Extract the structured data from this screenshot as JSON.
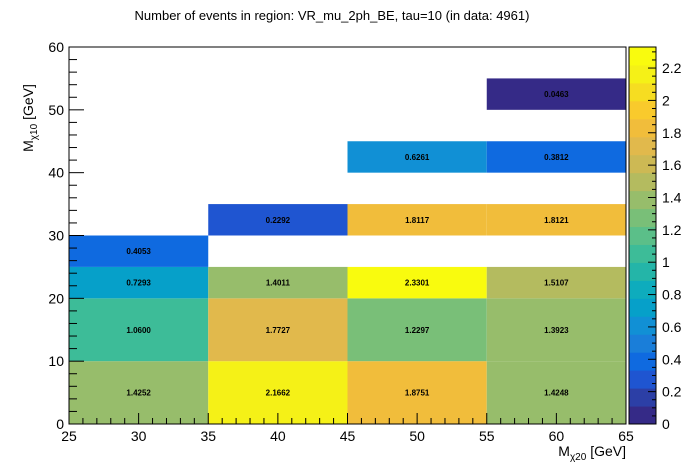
{
  "chart_data": {
    "type": "heatmap",
    "title": "Number of events in region: VR_mu_2ph_BE, tau=10 (in data: 4961)",
    "xlabel": {
      "main": "M",
      "sub": "χ20",
      "unit": " [GeV]"
    },
    "ylabel": {
      "main": "M",
      "sub": "χ10",
      "unit": " [GeV]"
    },
    "xlim": [
      25,
      65
    ],
    "ylim": [
      0,
      60
    ],
    "x_ticks": [
      25,
      30,
      35,
      40,
      45,
      50,
      55,
      60,
      65
    ],
    "y_ticks": [
      0,
      10,
      20,
      30,
      40,
      50,
      60
    ],
    "zlim": [
      0,
      2.3301
    ],
    "z_ticks": [
      0,
      0.2,
      0.4,
      0.6,
      0.8,
      1,
      1.2,
      1.4,
      1.6,
      1.8,
      2,
      2.2
    ],
    "cells": [
      {
        "x0": 25,
        "x1": 35,
        "y0": 0,
        "y1": 10,
        "value": 1.4252,
        "label": "1.4252"
      },
      {
        "x0": 35,
        "x1": 45,
        "y0": 0,
        "y1": 10,
        "value": 2.1662,
        "label": "2.1662"
      },
      {
        "x0": 45,
        "x1": 55,
        "y0": 0,
        "y1": 10,
        "value": 1.8751,
        "label": "1.8751"
      },
      {
        "x0": 55,
        "x1": 65,
        "y0": 0,
        "y1": 10,
        "value": 1.4248,
        "label": "1.4248"
      },
      {
        "x0": 25,
        "x1": 35,
        "y0": 10,
        "y1": 20,
        "value": 1.06,
        "label": "1.0600"
      },
      {
        "x0": 35,
        "x1": 45,
        "y0": 10,
        "y1": 20,
        "value": 1.7727,
        "label": "1.7727"
      },
      {
        "x0": 45,
        "x1": 55,
        "y0": 10,
        "y1": 20,
        "value": 1.2297,
        "label": "1.2297"
      },
      {
        "x0": 55,
        "x1": 65,
        "y0": 10,
        "y1": 20,
        "value": 1.3923,
        "label": "1.3923"
      },
      {
        "x0": 25,
        "x1": 35,
        "y0": 20,
        "y1": 25,
        "value": 0.7293,
        "label": "0.7293"
      },
      {
        "x0": 35,
        "x1": 45,
        "y0": 20,
        "y1": 25,
        "value": 1.4011,
        "label": "1.4011"
      },
      {
        "x0": 45,
        "x1": 55,
        "y0": 20,
        "y1": 25,
        "value": 2.3301,
        "label": "2.3301"
      },
      {
        "x0": 55,
        "x1": 65,
        "y0": 20,
        "y1": 25,
        "value": 1.5107,
        "label": "1.5107"
      },
      {
        "x0": 25,
        "x1": 35,
        "y0": 25,
        "y1": 30,
        "value": 0.4053,
        "label": "0.4053"
      },
      {
        "x0": 35,
        "x1": 45,
        "y0": 30,
        "y1": 35,
        "value": 0.2292,
        "label": "0.2292"
      },
      {
        "x0": 45,
        "x1": 55,
        "y0": 30,
        "y1": 35,
        "value": 1.8117,
        "label": "1.8117"
      },
      {
        "x0": 55,
        "x1": 65,
        "y0": 30,
        "y1": 35,
        "value": 1.8121,
        "label": "1.8121"
      },
      {
        "x0": 45,
        "x1": 55,
        "y0": 40,
        "y1": 45,
        "value": 0.6261,
        "label": "0.6261"
      },
      {
        "x0": 55,
        "x1": 65,
        "y0": 40,
        "y1": 45,
        "value": 0.3812,
        "label": "0.3812"
      },
      {
        "x0": 55,
        "x1": 65,
        "y0": 50,
        "y1": 55,
        "value": 0.0463,
        "label": "0.0463"
      }
    ],
    "palette": [
      "#352a87",
      "#2c3fa6",
      "#1f55d1",
      "#0f6ae0",
      "#1a7ed9",
      "#1190d5",
      "#06a0c9",
      "#0eacbd",
      "#24b5a8",
      "#3dbc98",
      "#5bbf89",
      "#79bf78",
      "#97bd6b",
      "#b4bb5f",
      "#cdb954",
      "#e1b94c",
      "#f1bd3b",
      "#f9ca2c",
      "#f6dd21",
      "#f5f117",
      "#f9fb0e"
    ]
  }
}
